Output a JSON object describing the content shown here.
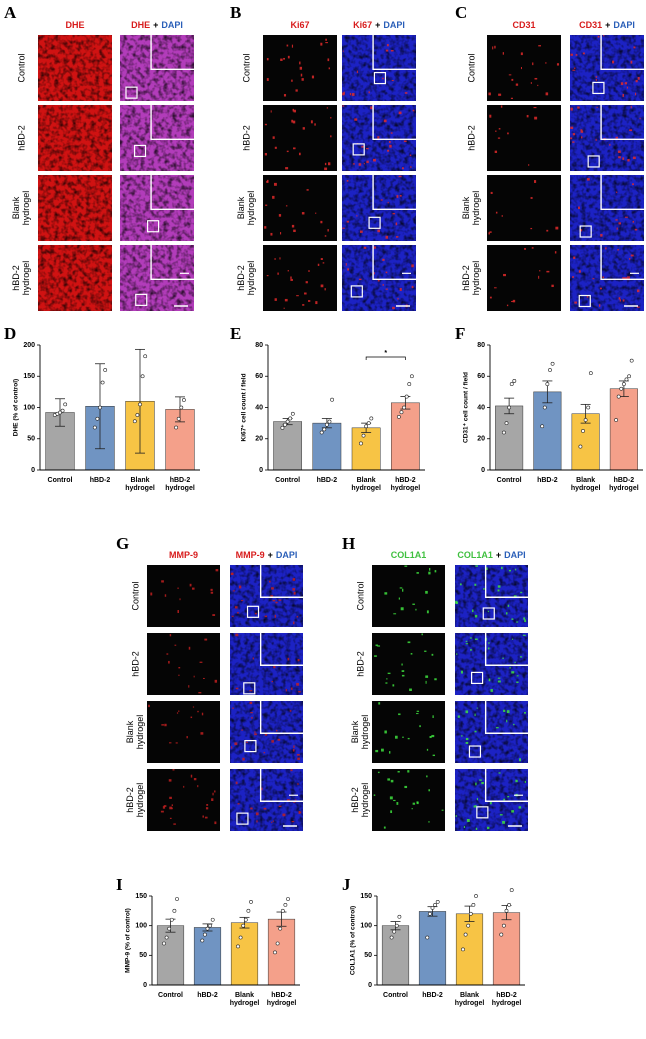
{
  "panels": [
    {
      "letter": "A",
      "headers": [
        [
          {
            "text": "DHE",
            "color": "#d81c1c"
          }
        ],
        [
          {
            "text": "DHE",
            "color": "#d81c1c"
          },
          {
            "text": "+",
            "color": "#000000"
          },
          {
            "text": "DAPI",
            "color": "#2a5fb8"
          }
        ]
      ],
      "rows": [
        "Control",
        "hBD-2",
        "Blank hydrogel",
        "hBD-2 hydrogel"
      ],
      "stain": "dense",
      "stain_color": "#d01212",
      "merge_color": "#b23cba"
    },
    {
      "letter": "B",
      "headers": [
        [
          {
            "text": "Ki67",
            "color": "#d81c1c"
          }
        ],
        [
          {
            "text": "Ki67",
            "color": "#d81c1c"
          },
          {
            "text": "+",
            "color": "#000000"
          },
          {
            "text": "DAPI",
            "color": "#2a5fb8"
          }
        ]
      ],
      "rows": [
        "Control",
        "hBD-2",
        "Blank hydrogel",
        "hBD-2 hydrogel"
      ],
      "stain": "sparse",
      "stain_color": "#e02a2a",
      "merge_color": "#1c22c4"
    },
    {
      "letter": "C",
      "headers": [
        [
          {
            "text": "CD31",
            "color": "#d81c1c"
          }
        ],
        [
          {
            "text": "CD31",
            "color": "#d81c1c"
          },
          {
            "text": "+",
            "color": "#000000"
          },
          {
            "text": "DAPI",
            "color": "#2a5fb8"
          }
        ]
      ],
      "rows": [
        "Control",
        "hBD-2",
        "Blank hydrogel",
        "hBD-2 hydrogel"
      ],
      "stain": "sparse",
      "stain_color": "#e02a2a",
      "merge_color": "#1c22c4"
    },
    {
      "letter": "G",
      "headers": [
        [
          {
            "text": "MMP-9",
            "color": "#d81c1c"
          }
        ],
        [
          {
            "text": "MMP-9",
            "color": "#d81c1c"
          },
          {
            "text": "+",
            "color": "#000000"
          },
          {
            "text": "DAPI",
            "color": "#2a5fb8"
          }
        ]
      ],
      "rows": [
        "Control",
        "hBD-2",
        "Blank hydrogel",
        "hBD-2 hydrogel"
      ],
      "stain": "sparse",
      "stain_color": "#c02020",
      "merge_color": "#1c22c4"
    },
    {
      "letter": "H",
      "headers": [
        [
          {
            "text": "COL1A1",
            "color": "#3fc03f"
          }
        ],
        [
          {
            "text": "COL1A1",
            "color": "#3fc03f"
          },
          {
            "text": "+",
            "color": "#000000"
          },
          {
            "text": "DAPI",
            "color": "#2a5fb8"
          }
        ]
      ],
      "rows": [
        "Control",
        "hBD-2",
        "Blank hydrogel",
        "hBD-2 hydrogel"
      ],
      "stain": "sparse",
      "stain_color": "#3ee03e",
      "merge_color": "#1c22c4"
    }
  ],
  "chart_data": [
    {
      "letter": "D",
      "type": "bar",
      "ylabel": "DHE (% of control)",
      "categories": [
        "Control",
        "hBD-2",
        "Blank hydrogel",
        "hBD-2 hydrogel"
      ],
      "values": [
        92,
        102,
        110,
        97
      ],
      "errors": [
        22,
        68,
        83,
        20
      ],
      "points": [
        [
          88,
          90,
          92,
          95,
          105
        ],
        [
          68,
          82,
          100,
          140,
          160
        ],
        [
          78,
          88,
          105,
          150,
          182
        ],
        [
          68,
          82,
          100,
          112
        ]
      ],
      "colors": [
        "#a6a6a6",
        "#7094c2",
        "#f7c445",
        "#f4a08a"
      ],
      "ylim": [
        0,
        200
      ],
      "yticks": [
        0,
        50,
        100,
        150,
        200
      ]
    },
    {
      "letter": "E",
      "type": "bar",
      "ylabel": "Ki67⁺ cell count / field",
      "categories": [
        "Control",
        "hBD-2",
        "Blank hydrogel",
        "hBD-2 hydrogel"
      ],
      "values": [
        31,
        30,
        27,
        43
      ],
      "errors": [
        2,
        3,
        3,
        4
      ],
      "points": [
        [
          27,
          29,
          31,
          33,
          36
        ],
        [
          24,
          26,
          29,
          31,
          45
        ],
        [
          17,
          22,
          28,
          30,
          33
        ],
        [
          34,
          37,
          40,
          47,
          55,
          60
        ]
      ],
      "colors": [
        "#a6a6a6",
        "#7094c2",
        "#f7c445",
        "#f4a08a"
      ],
      "ylim": [
        0,
        80
      ],
      "yticks": [
        0,
        20,
        40,
        60,
        80
      ],
      "annotations": [
        {
          "text": "*",
          "between": [
            "Blank hydrogel",
            "hBD-2 hydrogel"
          ]
        }
      ]
    },
    {
      "letter": "F",
      "type": "bar",
      "ylabel": "CD31⁺ cell count / field",
      "categories": [
        "Control",
        "hBD-2",
        "Blank hydrogel",
        "hBD-2 hydrogel"
      ],
      "values": [
        41,
        50,
        36,
        52
      ],
      "errors": [
        5,
        7,
        6,
        5
      ],
      "points": [
        [
          24,
          30,
          40,
          55,
          57
        ],
        [
          28,
          40,
          55,
          64,
          68
        ],
        [
          15,
          25,
          32,
          40,
          62
        ],
        [
          32,
          47,
          52,
          55,
          58,
          60,
          70
        ]
      ],
      "colors": [
        "#a6a6a6",
        "#7094c2",
        "#f7c445",
        "#f4a08a"
      ],
      "ylim": [
        0,
        80
      ],
      "yticks": [
        0,
        20,
        40,
        60,
        80
      ]
    },
    {
      "letter": "I",
      "type": "bar",
      "ylabel": "MMP-9 (% of control)",
      "categories": [
        "Control",
        "hBD-2",
        "Blank hydrogel",
        "hBD-2 hydrogel"
      ],
      "values": [
        100,
        97,
        105,
        111
      ],
      "errors": [
        11,
        6,
        9,
        12
      ],
      "points": [
        [
          70,
          80,
          95,
          110,
          125,
          145
        ],
        [
          75,
          85,
          95,
          100,
          110
        ],
        [
          65,
          80,
          100,
          110,
          125,
          140
        ],
        [
          55,
          70,
          95,
          125,
          135,
          145
        ]
      ],
      "colors": [
        "#a6a6a6",
        "#7094c2",
        "#f7c445",
        "#f4a08a"
      ],
      "ylim": [
        0,
        150
      ],
      "yticks": [
        0,
        50,
        100,
        150
      ]
    },
    {
      "letter": "J",
      "type": "bar",
      "ylabel": "COL1A1 (% of control)",
      "categories": [
        "Control",
        "hBD-2",
        "Blank hydrogel",
        "hBD-2 hydrogel"
      ],
      "values": [
        100,
        124,
        120,
        122
      ],
      "errors": [
        7,
        8,
        13,
        12
      ],
      "points": [
        [
          80,
          90,
          100,
          115
        ],
        [
          80,
          120,
          130,
          135,
          140
        ],
        [
          60,
          85,
          100,
          120,
          135,
          150
        ],
        [
          85,
          100,
          125,
          135,
          160
        ]
      ],
      "colors": [
        "#a6a6a6",
        "#7094c2",
        "#f7c445",
        "#f4a08a"
      ],
      "ylim": [
        0,
        150
      ],
      "yticks": [
        0,
        50,
        100,
        150
      ]
    }
  ]
}
